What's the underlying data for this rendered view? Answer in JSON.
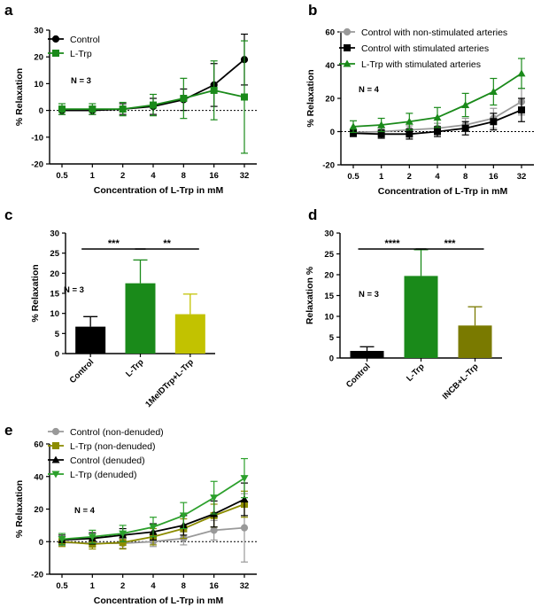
{
  "chart_data": [
    {
      "id": "a",
      "type": "line",
      "panel_label": "a",
      "xlabel": "Concentration of L-Trp in mM",
      "ylabel": "% Relaxation",
      "categories": [
        "0.5",
        "1",
        "2",
        "4",
        "8",
        "16",
        "32"
      ],
      "ylim": [
        -20,
        30
      ],
      "yticks": [
        -20,
        -10,
        0,
        10,
        20,
        30
      ],
      "annotation": "N = 3",
      "series": [
        {
          "name": "Control",
          "color": "#000000",
          "marker": "circle",
          "values": [
            0,
            0,
            0.5,
            1.5,
            4,
            9.5,
            19
          ],
          "errors": [
            1.5,
            1.5,
            2,
            3,
            4,
            8,
            9.5
          ]
        },
        {
          "name": "L-Trp",
          "color": "#1a8a1a",
          "marker": "square",
          "values": [
            0.5,
            0.5,
            0.5,
            2,
            4.5,
            7.5,
            5
          ],
          "errors": [
            2,
            2,
            2.5,
            4,
            7.5,
            11,
            21
          ]
        }
      ]
    },
    {
      "id": "b",
      "type": "line",
      "panel_label": "b",
      "xlabel": "Concentration of L-Trp in mM",
      "ylabel": "% Relaxation",
      "categories": [
        "0.5",
        "1",
        "2",
        "4",
        "8",
        "16",
        "32"
      ],
      "ylim": [
        -20,
        60
      ],
      "yticks": [
        -20,
        0,
        20,
        40,
        60
      ],
      "annotation": "N = 4",
      "series": [
        {
          "name": "Control with non-stimulated arteries",
          "color": "#999999",
          "marker": "circle",
          "values": [
            -0.5,
            0,
            1,
            2,
            4,
            8,
            18
          ],
          "errors": [
            2,
            2,
            2.5,
            3,
            4,
            6,
            8
          ]
        },
        {
          "name": "Control with stimulated arteries",
          "color": "#000000",
          "marker": "square",
          "values": [
            -1,
            -1.5,
            -1.5,
            0,
            2,
            6,
            13
          ],
          "errors": [
            2,
            2.5,
            3,
            3,
            4,
            5,
            7
          ]
        },
        {
          "name": "L-Trp with stimulated arteries",
          "color": "#1a8a1a",
          "marker": "triangle",
          "values": [
            3,
            4,
            6,
            8.5,
            16,
            24,
            35
          ],
          "errors": [
            3.5,
            4,
            5,
            6,
            7,
            8,
            9
          ]
        }
      ]
    },
    {
      "id": "c",
      "type": "bar",
      "panel_label": "c",
      "ylabel": "% Relaxation",
      "categories": [
        "Control",
        "L-Trp",
        "1MeIDTrp+L-Trp"
      ],
      "values": [
        6.7,
        17.5,
        9.8
      ],
      "errors": [
        2.5,
        5.8,
        5.0
      ],
      "colors": [
        "#000000",
        "#1a8a1a",
        "#c2c200"
      ],
      "ylim": [
        0,
        30
      ],
      "yticks": [
        0,
        5,
        10,
        15,
        20,
        25,
        30
      ],
      "annotation": "N = 3",
      "significance": [
        {
          "from": 0,
          "to": 1,
          "label": "***"
        },
        {
          "from": 1,
          "to": 2,
          "label": "**"
        }
      ]
    },
    {
      "id": "d",
      "type": "bar",
      "panel_label": "d",
      "ylabel": "Relaxation %",
      "categories": [
        "Control",
        "L-Trp",
        "INCB+L-Trp"
      ],
      "values": [
        1.7,
        19.7,
        7.8
      ],
      "errors": [
        1.0,
        6.3,
        4.5
      ],
      "colors": [
        "#000000",
        "#1a8a1a",
        "#7a7a00"
      ],
      "ylim": [
        0,
        30
      ],
      "yticks": [
        0,
        5,
        10,
        15,
        20,
        25,
        30
      ],
      "annotation": "N = 3",
      "significance": [
        {
          "from": 0,
          "to": 1,
          "label": "****"
        },
        {
          "from": 1,
          "to": 2,
          "label": "***"
        }
      ]
    },
    {
      "id": "e",
      "type": "line",
      "panel_label": "e",
      "xlabel": "Concentration of L-Trp in mM",
      "ylabel": "% Relaxation",
      "categories": [
        "0.5",
        "1",
        "2",
        "4",
        "8",
        "16",
        "32"
      ],
      "ylim": [
        -20,
        60
      ],
      "yticks": [
        -20,
        0,
        20,
        40,
        60
      ],
      "annotation": "N = 4",
      "series": [
        {
          "name": "Control (non-denuded)",
          "color": "#999999",
          "marker": "circle",
          "values": [
            -0.5,
            -1,
            -1,
            0,
            2,
            7,
            8.5
          ],
          "errors": [
            2,
            2,
            3,
            3,
            4,
            6,
            21
          ]
        },
        {
          "name": "L-Trp (non-denuded)",
          "color": "#8c8c00",
          "marker": "square",
          "values": [
            0,
            -1.5,
            -0.5,
            3,
            8,
            16,
            23
          ],
          "errors": [
            3,
            3,
            4,
            5,
            6,
            7,
            8
          ]
        },
        {
          "name": "Control (denuded)",
          "color": "#000000",
          "marker": "triangle",
          "values": [
            1,
            2,
            4,
            6,
            10,
            17,
            26
          ],
          "errors": [
            3,
            3.5,
            4,
            5,
            6,
            8,
            10
          ]
        },
        {
          "name": "L-Trp (denuded)",
          "color": "#2ca02c",
          "marker": "triangle-down",
          "values": [
            1.5,
            3,
            5,
            9,
            16,
            27,
            39
          ],
          "errors": [
            3.5,
            4,
            5,
            6,
            8,
            10,
            12
          ]
        }
      ]
    }
  ]
}
